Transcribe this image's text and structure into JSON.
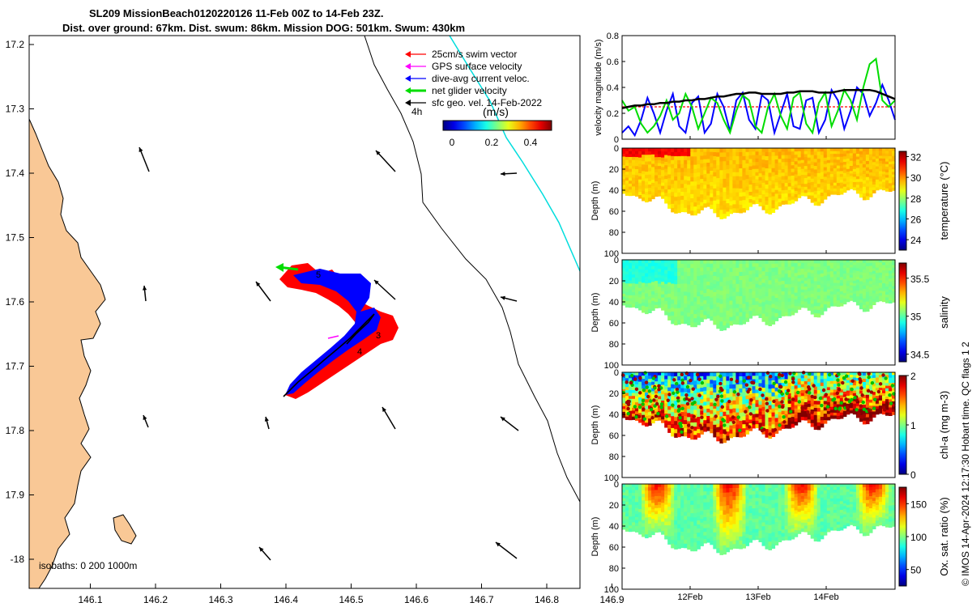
{
  "titles": {
    "line1": "SL209 MissionBeach0120220126 11-Feb 00Z to 14-Feb 23Z.",
    "line2": "Dist. over ground: 67km. Dist. swum: 86km. Mission DOG: 501km. Swum: 430km"
  },
  "map": {
    "x_ticks": [
      "146.1",
      "146.2",
      "146.3",
      "146.4",
      "146.5",
      "146.6",
      "146.7",
      "146.8",
      "146.9"
    ],
    "y_ticks": [
      "17.2",
      "17.3",
      "17.4",
      "17.5",
      "17.6",
      "17.7",
      "17.8",
      "17.9",
      "-18"
    ],
    "isobaths_label": "isobaths: 0   200  1000m",
    "legend": [
      {
        "label": "25cm/s swim vector",
        "color": "#ff0000"
      },
      {
        "label": "GPS surface velocity",
        "color": "#ff00ff"
      },
      {
        "label": "dive-avg current veloc.",
        "color": "#0000ff"
      },
      {
        "label": "net glider velocity",
        "color": "#00dd00"
      },
      {
        "label": "sfc geo. vel. 14-Feb-2022",
        "color": "#000000"
      }
    ],
    "time_tag": "4h",
    "colorbar_unit": "(m/s)",
    "colorbar_ticks": [
      "0",
      "0.2",
      "0.4"
    ],
    "track_labels": [
      "5",
      "3",
      "4"
    ],
    "colors": {
      "land": "#f9c896",
      "water": "#ffffff",
      "isobath": "#000000",
      "track": "#0000ff",
      "swim": "#ff0000",
      "current_line": "#00dddd"
    }
  },
  "chart_data": [
    {
      "type": "line",
      "ylabel": "velocity magnitude (m/s)",
      "ylim": [
        0,
        0.8
      ],
      "y_ticks": [
        "0",
        "0.2",
        "0.4",
        "0.6",
        "0.8"
      ],
      "x_range_days": [
        "11-Feb 00Z",
        "14-Feb 23Z"
      ],
      "series": [
        {
          "color": "#0000ff",
          "values": [
            0.05,
            0.1,
            0.03,
            0.15,
            0.32,
            0.2,
            0.05,
            0.22,
            0.35,
            0.1,
            0.05,
            0.28,
            0.33,
            0.05,
            0.12,
            0.35,
            0.25,
            0.06,
            0.3,
            0.36,
            0.15,
            0.08,
            0.34,
            0.3,
            0.05,
            0.2,
            0.35,
            0.1,
            0.08,
            0.3,
            0.32,
            0.05,
            0.15,
            0.38,
            0.3,
            0.08,
            0.22,
            0.4,
            0.35,
            0.18,
            0.28,
            0.42,
            0.3,
            0.15
          ]
        },
        {
          "color": "#00dd00",
          "values": [
            0.3,
            0.22,
            0.25,
            0.12,
            0.05,
            0.1,
            0.18,
            0.3,
            0.15,
            0.2,
            0.35,
            0.25,
            0.08,
            0.2,
            0.32,
            0.28,
            0.15,
            0.05,
            0.22,
            0.34,
            0.3,
            0.1,
            0.05,
            0.25,
            0.35,
            0.18,
            0.08,
            0.32,
            0.36,
            0.12,
            0.05,
            0.28,
            0.36,
            0.1,
            0.22,
            0.38,
            0.3,
            0.15,
            0.4,
            0.58,
            0.62,
            0.3,
            0.25,
            0.3
          ]
        },
        {
          "color": "#000000",
          "values": [
            0.24,
            0.25,
            0.26,
            0.26,
            0.27,
            0.27,
            0.28,
            0.28,
            0.29,
            0.29,
            0.3,
            0.3,
            0.31,
            0.31,
            0.32,
            0.33,
            0.33,
            0.34,
            0.35,
            0.35,
            0.36,
            0.36,
            0.35,
            0.35,
            0.35,
            0.35,
            0.36,
            0.36,
            0.37,
            0.37,
            0.37,
            0.36,
            0.36,
            0.36,
            0.37,
            0.38,
            0.38,
            0.38,
            0.38,
            0.38,
            0.37,
            0.35,
            0.33,
            0.31
          ]
        }
      ],
      "reference_line": {
        "color": "#ff0000",
        "value": 0.25
      }
    },
    {
      "type": "heatmap",
      "ylabel": "Depth (m)",
      "ylim": [
        0,
        100
      ],
      "y_ticks": [
        "0",
        "20",
        "40",
        "60",
        "80",
        "100"
      ],
      "colorbar_label": "temperature (°C)",
      "colorbar_ticks": [
        "24",
        "26",
        "28",
        "30",
        "32"
      ],
      "clim": [
        23,
        32.5
      ],
      "typical_value": 29.5
    },
    {
      "type": "heatmap",
      "ylabel": "Depth (m)",
      "ylim": [
        0,
        100
      ],
      "y_ticks": [
        "0",
        "20",
        "40",
        "60",
        "80",
        "100"
      ],
      "colorbar_label": "salinity",
      "colorbar_ticks": [
        "34.5",
        "35",
        "35.5"
      ],
      "clim": [
        34.4,
        35.7
      ],
      "typical_value": 35.1
    },
    {
      "type": "heatmap",
      "ylabel": "Depth (m)",
      "ylim": [
        0,
        100
      ],
      "y_ticks": [
        "0",
        "20",
        "40",
        "60",
        "80",
        "100"
      ],
      "colorbar_label": "chl-a (mg m-3)",
      "colorbar_ticks": [
        "0",
        "1",
        "2"
      ],
      "clim": [
        0,
        2
      ],
      "typical_value": 1.0
    },
    {
      "type": "heatmap",
      "ylabel": "Depth (m)",
      "ylim": [
        0,
        100
      ],
      "y_ticks": [
        "0",
        "20",
        "40",
        "60",
        "80",
        "100"
      ],
      "colorbar_label": "Ox. sat. ratio (%)",
      "colorbar_ticks": [
        "50",
        "100",
        "150"
      ],
      "clim": [
        25,
        175
      ],
      "typical_value": 100
    }
  ],
  "time_axis": {
    "ticks": [
      "12Feb",
      "13Feb",
      "14Feb"
    ]
  },
  "footer_note": "© IMOS 14-Apr-2024 12:17:30 Hobart time. QC flags 1  2"
}
